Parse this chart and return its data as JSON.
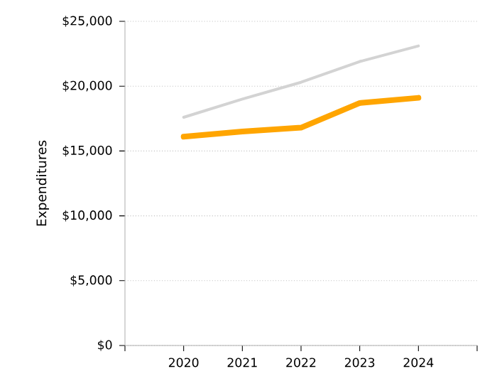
{
  "chart_data": {
    "type": "line",
    "ylabel": "Expenditures",
    "x": [
      2020,
      2021,
      2022,
      2023,
      2024
    ],
    "series": [
      {
        "color": "#d3d3d3",
        "values": [
          17600,
          19000,
          20300,
          21900,
          23100
        ]
      },
      {
        "color": "#ffa500",
        "values": [
          16100,
          16500,
          16800,
          18700,
          19100
        ]
      }
    ],
    "xlim": [
      2019,
      2025
    ],
    "xticks": [
      {
        "value": 2019,
        "label": null
      },
      2020,
      2021,
      2022,
      2023,
      2024,
      {
        "value": 2025,
        "label": null
      }
    ],
    "ylim": [
      0,
      25000
    ],
    "yticks": [
      {
        "value": 0,
        "label": "$0"
      },
      {
        "value": 5000,
        "label": "$5,000"
      },
      {
        "value": 10000,
        "label": "$10,000"
      },
      {
        "value": 15000,
        "label": "$15,000"
      },
      {
        "value": 20000,
        "label": "$20,000"
      },
      {
        "value": 25000,
        "label": "$25,000"
      }
    ],
    "grid": "y",
    "marker": "none",
    "line_style": "solid"
  }
}
